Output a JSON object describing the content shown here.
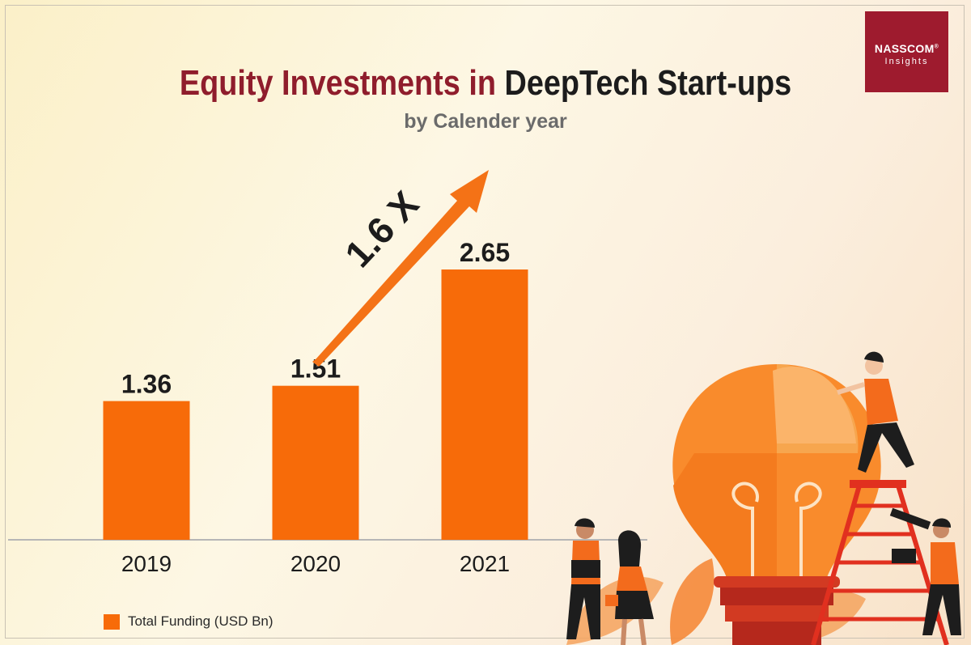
{
  "header": {
    "title_part1": "Equity Investments in",
    "title_part2": "DeepTech Start-ups",
    "subtitle": "by Calender year"
  },
  "logo": {
    "brand": "NASSCOM",
    "registered": "®",
    "sub": "Insights"
  },
  "annotation": {
    "growth": "1.6 X"
  },
  "legend": {
    "label": "Total Funding (USD Bn)"
  },
  "colors": {
    "bar": "#f76b09",
    "title_accent": "#8f1d2c",
    "logo_bg": "#9e1b2e"
  },
  "chart_data": {
    "type": "bar",
    "categories": [
      "2019",
      "2020",
      "2021"
    ],
    "series": [
      {
        "name": "Total Funding (USD Bn)",
        "values": [
          1.36,
          1.51,
          2.65
        ]
      }
    ],
    "data_labels": [
      "1.36",
      "1.51",
      "2.65"
    ],
    "ylim": [
      0,
      2.65
    ],
    "grid": false,
    "legend_position": "bottom-left"
  }
}
